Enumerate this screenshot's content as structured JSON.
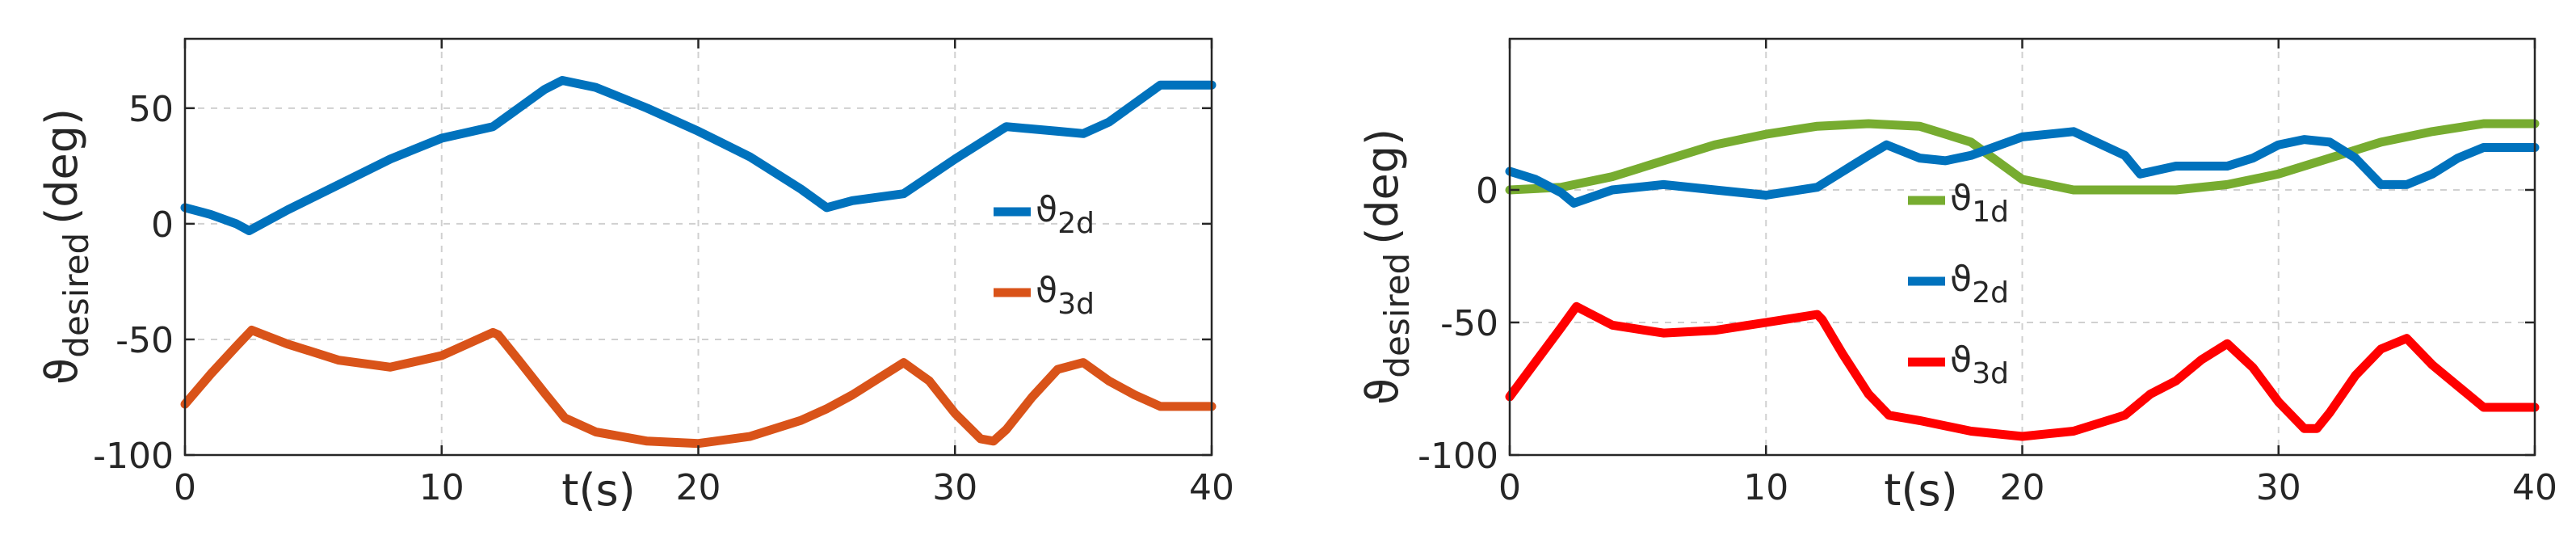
{
  "chart_data": [
    {
      "type": "line",
      "xlabel": "t(s)",
      "ylabel": "ϑ",
      "ylabel_sub": "desired",
      "ylabel_unit": "(deg)",
      "xlim": [
        0,
        40
      ],
      "ylim": [
        -100,
        80
      ],
      "xticks": [
        0,
        10,
        20,
        30,
        40
      ],
      "yticks": [
        50,
        0,
        -50,
        -100
      ],
      "grid": true,
      "legend": "right",
      "series": [
        {
          "name": "ϑ",
          "sub": "2d",
          "color": "#0072BD",
          "x": [
            0,
            1,
            2,
            2.5,
            4,
            6,
            8,
            10,
            12,
            13,
            14,
            14.7,
            16,
            18,
            20,
            22,
            24,
            25,
            26,
            28,
            30,
            32,
            34,
            35,
            36,
            37,
            38,
            40
          ],
          "y": [
            7,
            4,
            0,
            -3,
            6,
            17,
            28,
            37,
            42,
            50,
            58,
            62,
            59,
            50,
            40,
            29,
            15,
            7,
            10,
            13,
            28,
            42,
            40,
            39,
            44,
            52,
            60,
            60
          ]
        },
        {
          "name": "ϑ",
          "sub": "3d",
          "color": "#D95319",
          "x": [
            0,
            1,
            2,
            2.6,
            4,
            6,
            8,
            10,
            12,
            12.2,
            13,
            14,
            14.8,
            16,
            18,
            20,
            22,
            24,
            25,
            26,
            27,
            28,
            29,
            30,
            31,
            31.5,
            32,
            33,
            34,
            35,
            36,
            37,
            38,
            40
          ],
          "y": [
            -78,
            -65,
            -53,
            -46,
            -52,
            -59,
            -62,
            -57,
            -47,
            -48,
            -59,
            -73,
            -84,
            -90,
            -94,
            -95,
            -92,
            -85,
            -80,
            -74,
            -67,
            -60,
            -68,
            -82,
            -93,
            -94,
            -89,
            -75,
            -63,
            -60,
            -68,
            -74,
            -79,
            -79
          ]
        }
      ]
    },
    {
      "type": "line",
      "xlabel": "t(s)",
      "ylabel": "ϑ",
      "ylabel_sub": "desired",
      "ylabel_unit": "(deg)",
      "xlim": [
        0,
        40
      ],
      "ylim": [
        -100,
        57
      ],
      "xticks": [
        0,
        10,
        20,
        30,
        40
      ],
      "yticks": [
        0,
        -50,
        -100
      ],
      "grid": true,
      "legend": "center-left",
      "series": [
        {
          "name": "ϑ",
          "sub": "1d",
          "color": "#77AC30",
          "x": [
            0,
            2,
            4,
            6,
            8,
            10,
            12,
            14,
            16,
            18,
            19,
            20,
            22,
            24,
            26,
            28,
            30,
            32,
            34,
            36,
            38,
            40
          ],
          "y": [
            0,
            1,
            5,
            11,
            17,
            21,
            24,
            25,
            24,
            18,
            11,
            4,
            0,
            0,
            0,
            2,
            6,
            12,
            18,
            22,
            25,
            25
          ]
        },
        {
          "name": "ϑ",
          "sub": "2d",
          "color": "#0072BD",
          "x": [
            0,
            1,
            2,
            2.5,
            4,
            6,
            8,
            10,
            12,
            13,
            14,
            14.7,
            16,
            17,
            18,
            20,
            22,
            24,
            24.6,
            26,
            28,
            29,
            30,
            31,
            32,
            33,
            34,
            35,
            36,
            37,
            38,
            40
          ],
          "y": [
            7,
            4,
            -1,
            -5,
            0,
            2,
            0,
            -2,
            1,
            7,
            13,
            17,
            12,
            11,
            13,
            20,
            22,
            13,
            6,
            9,
            9,
            12,
            17,
            19,
            18,
            12,
            2,
            2,
            6,
            12,
            16,
            16
          ]
        },
        {
          "name": "ϑ",
          "sub": "3d",
          "color": "#FF0000",
          "x": [
            0,
            1,
            2,
            2.6,
            4,
            6,
            8,
            10,
            12,
            12.2,
            13,
            14,
            14.8,
            16,
            18,
            20,
            22,
            24,
            25,
            26,
            27,
            28,
            29,
            30,
            31,
            31.5,
            32,
            33,
            34,
            35,
            36,
            37,
            38,
            40
          ],
          "y": [
            -78,
            -65,
            -52,
            -44,
            -51,
            -54,
            -53,
            -50,
            -47,
            -49,
            -62,
            -77,
            -85,
            -87,
            -91,
            -93,
            -91,
            -85,
            -77,
            -72,
            -64,
            -58,
            -67,
            -80,
            -90,
            -90,
            -84,
            -70,
            -60,
            -56,
            -66,
            -74,
            -82,
            -82
          ]
        }
      ]
    }
  ]
}
